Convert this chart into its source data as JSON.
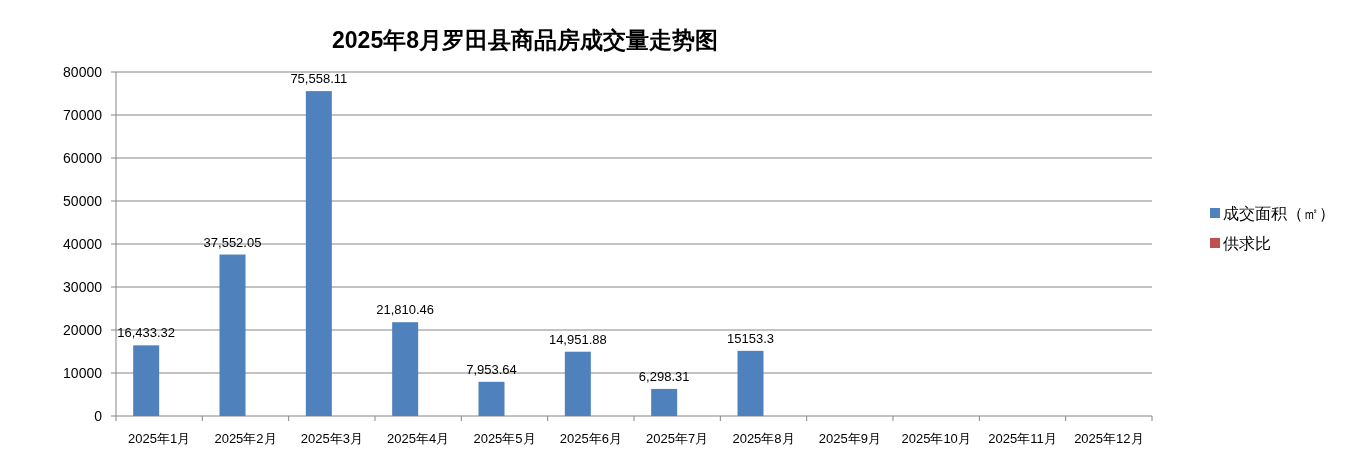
{
  "chart_data": {
    "type": "bar",
    "title": "2025年8月罗田县商品房成交量走势图",
    "categories": [
      "2025年1月",
      "2025年2月",
      "2025年3月",
      "2025年4月",
      "2025年5月",
      "2025年6月",
      "2025年7月",
      "2025年8月",
      "2025年9月",
      "2025年10月",
      "2025年11月",
      "2025年12月"
    ],
    "series": [
      {
        "name": "成交面积（㎡）",
        "color": "#4f81bd",
        "values": [
          16433.32,
          37552.05,
          75558.11,
          21810.46,
          7953.64,
          14951.88,
          6298.31,
          15153.3,
          null,
          null,
          null,
          null
        ],
        "value_labels": [
          "16,433.32",
          "37,552.05",
          "75,558.11",
          "21,810.46",
          "7,953.64",
          "14,951.88",
          "6,298.31",
          "15153.3",
          null,
          null,
          null,
          null
        ]
      },
      {
        "name": "供求比",
        "color": "#c0504d",
        "values": [
          null,
          null,
          null,
          null,
          null,
          null,
          null,
          null,
          null,
          null,
          null,
          null
        ]
      }
    ],
    "ylim": [
      0,
      80000
    ],
    "yticks": [
      0,
      10000,
      20000,
      30000,
      40000,
      50000,
      60000,
      70000,
      80000
    ],
    "grid": "y",
    "legend": "right"
  }
}
